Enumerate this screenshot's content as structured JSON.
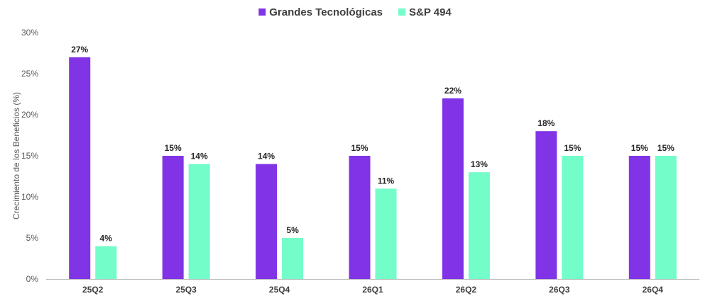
{
  "chart_data": {
    "type": "bar",
    "categories": [
      "25Q2",
      "25Q3",
      "25Q4",
      "26Q1",
      "26Q2",
      "26Q3",
      "26Q4"
    ],
    "series": [
      {
        "name": "Grandes Tecnológicas",
        "color": "#8133e6",
        "values": [
          27,
          15,
          14,
          15,
          22,
          18,
          15
        ]
      },
      {
        "name": "S&P 494",
        "color": "#72fdc9",
        "values": [
          4,
          14,
          5,
          11,
          13,
          15,
          15
        ]
      }
    ],
    "ylabel": "Crecimiento de los Beneficios (%)",
    "ylim": [
      0,
      30
    ],
    "yticks": [
      0,
      5,
      10,
      15,
      20,
      25,
      30
    ],
    "value_suffix": "%",
    "legend_position": "top-center",
    "grid": false
  }
}
